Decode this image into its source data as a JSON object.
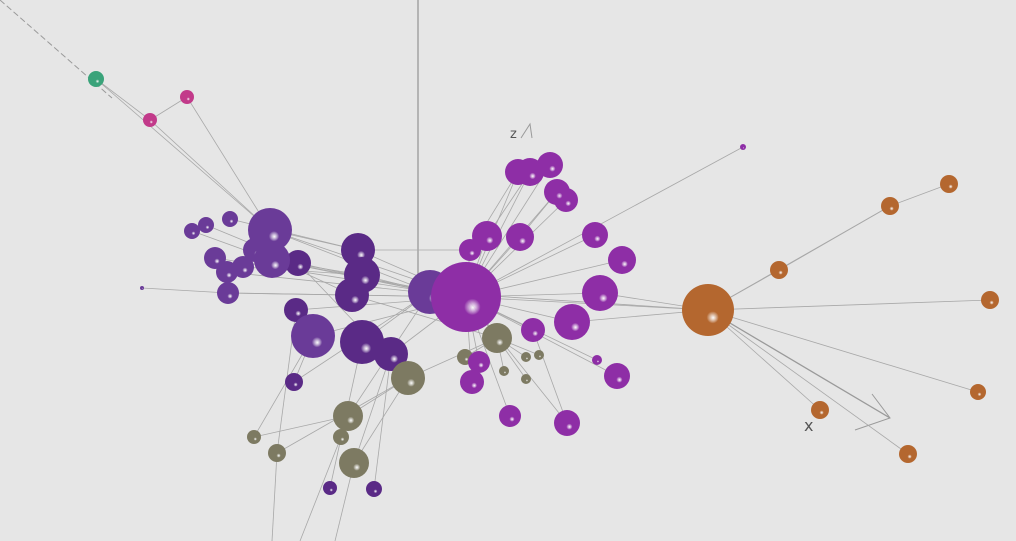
{
  "axes": {
    "z_label": "z",
    "x_label": "x"
  },
  "colors": {
    "background": "#e6e6e6",
    "edge": "#a8a8a8",
    "axis": "#9a9a9a",
    "violet": "#6a3b98",
    "dark_violet": "#5a2a86",
    "magenta": "#8e2ea6",
    "olive": "#7d7a62",
    "orange": "#b4672f",
    "green": "#3aa37a",
    "pink": "#c23a8a"
  },
  "groups": [
    "violet",
    "dark_violet",
    "magenta",
    "olive",
    "orange",
    "green",
    "pink"
  ]
}
